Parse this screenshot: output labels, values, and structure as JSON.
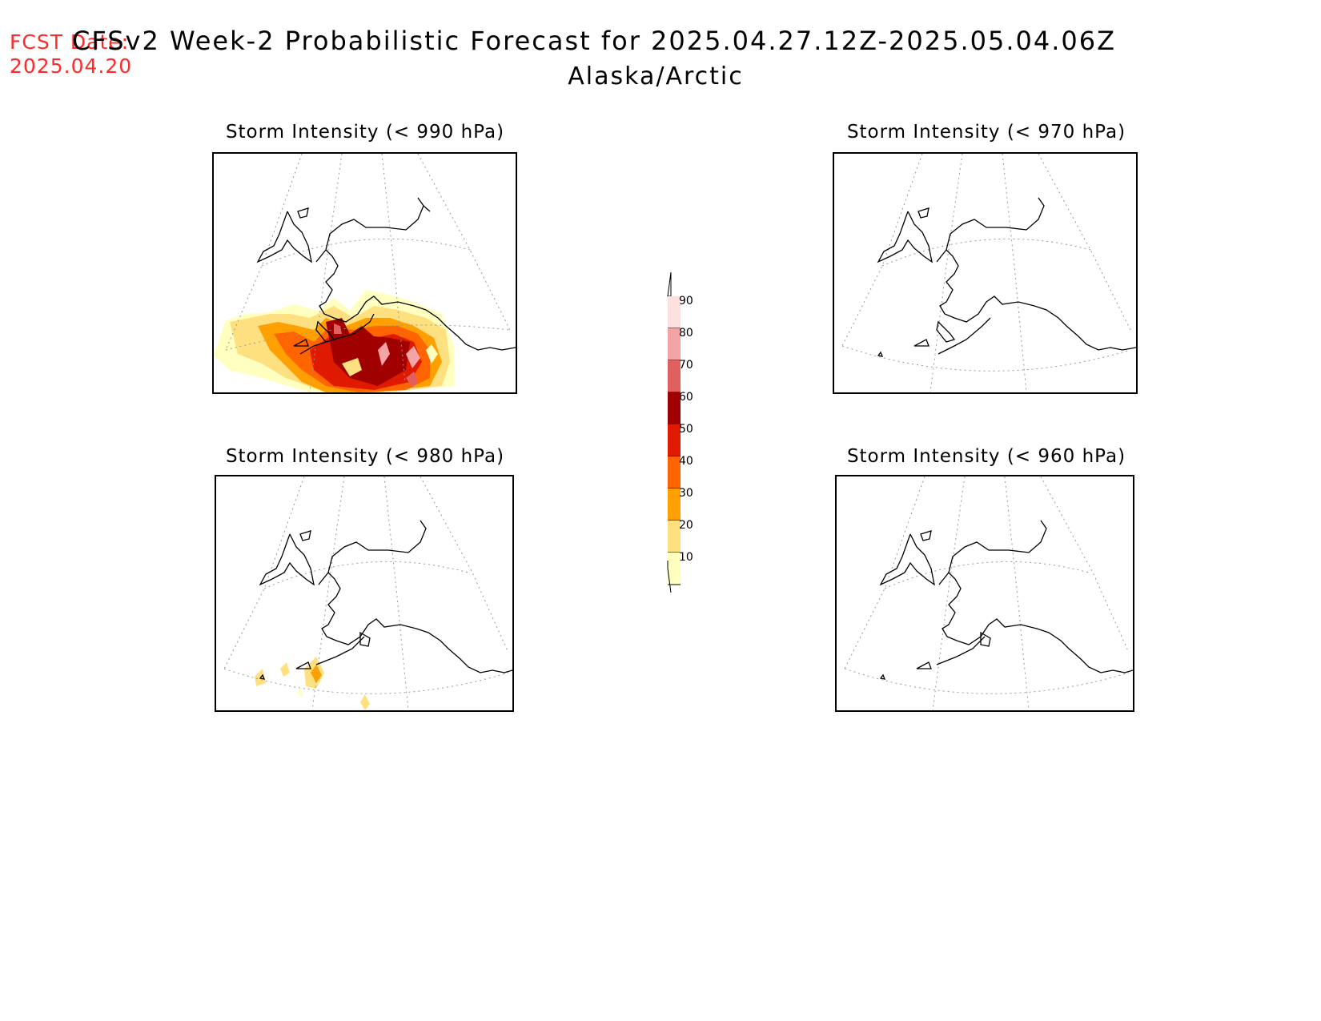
{
  "header": {
    "fcst_label": "FCST Date:",
    "fcst_date": "2025.04.20",
    "title": "CFSv2 Week-2 Probabilistic Forecast for 2025.04.27.12Z-2025.05.04.06Z",
    "subtitle": "Alaska/Arctic"
  },
  "panels": [
    {
      "title": "Storm Intensity (< 990 hPa)"
    },
    {
      "title": "Storm Intensity (< 970 hPa)"
    },
    {
      "title": "Storm Intensity (< 980 hPa)"
    },
    {
      "title": "Storm Intensity (< 960 hPa)"
    }
  ],
  "colorbar": {
    "labels": [
      "90",
      "80",
      "70",
      "60",
      "50",
      "40",
      "30",
      "20",
      "10"
    ],
    "colors": [
      "#fde0e0",
      "#f4a4a4",
      "#e06060",
      "#a00000",
      "#e01a00",
      "#ff6400",
      "#ffa000",
      "#ffe080",
      "#ffffc0"
    ]
  },
  "colors": {
    "fcst": "#ff2a2a",
    "p10": "#ffffc0",
    "p20": "#ffe080",
    "p30": "#ffa000",
    "p40": "#ff6400",
    "p50": "#e01a00",
    "p60": "#a00000",
    "p70": "#e06060",
    "p80": "#f4a4a4"
  }
}
